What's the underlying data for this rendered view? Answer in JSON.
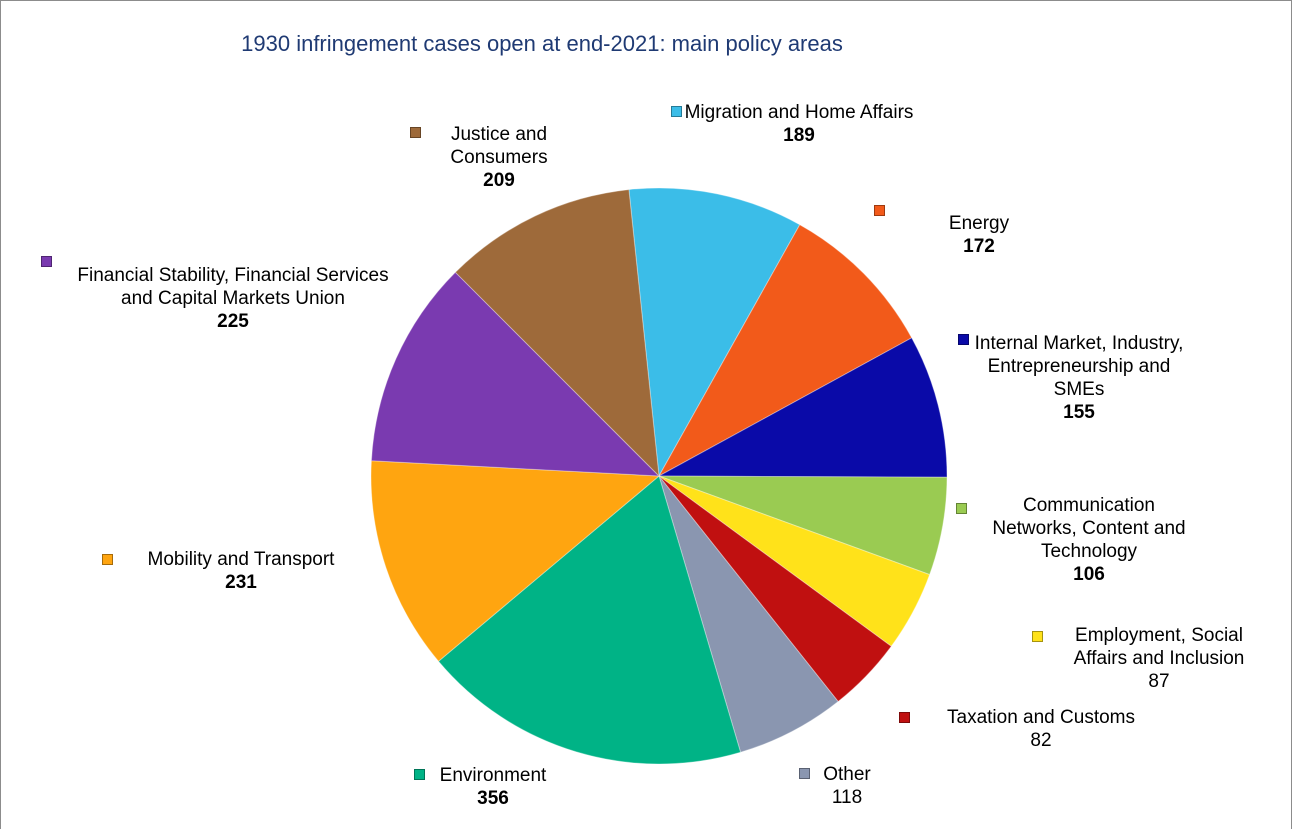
{
  "chart_data": {
    "type": "pie",
    "title": "1930 infringement cases open at end-2021: main policy areas",
    "categories": [
      "Migration and Home Affairs",
      "Energy",
      "Internal Market, Industry, Entrepreneurship and SMEs",
      "Communication Networks, Content and Technology",
      "Employment, Social Affairs and Inclusion",
      "Taxation and Customs",
      "Other",
      "Environment",
      "Mobility and Transport",
      "Financial Stability, Financial Services and Capital Markets Union",
      "Justice and Consumers"
    ],
    "values": [
      189,
      172,
      155,
      106,
      87,
      82,
      118,
      356,
      231,
      225,
      209
    ],
    "colors": [
      "#3bbde8",
      "#f25a1a",
      "#0a0aa8",
      "#9acb52",
      "#ffe21a",
      "#c01010",
      "#8a96b0",
      "#00b386",
      "#ffa510",
      "#7a3ab0",
      "#9e6a3a"
    ]
  }
}
